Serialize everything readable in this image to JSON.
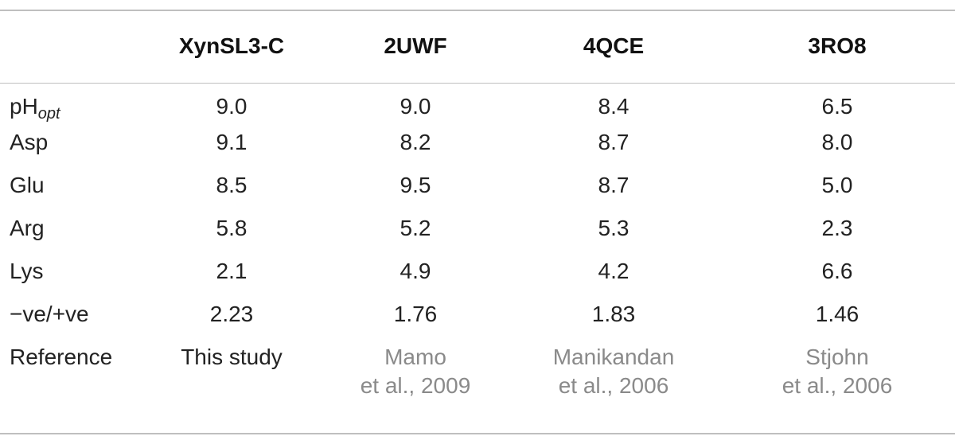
{
  "table": {
    "headers": [
      "",
      "XynSL3-C",
      "2UWF",
      "4QCE",
      "3RO8"
    ],
    "rows": [
      {
        "label_main": "pH",
        "label_sub": "opt",
        "values": [
          "9.0",
          "9.0",
          "8.4",
          "6.5"
        ]
      },
      {
        "label_main": "Asp",
        "label_sub": "",
        "values": [
          "9.1",
          "8.2",
          "8.7",
          "8.0"
        ]
      },
      {
        "label_main": "Glu",
        "label_sub": "",
        "values": [
          "8.5",
          "9.5",
          "8.7",
          "5.0"
        ]
      },
      {
        "label_main": "Arg",
        "label_sub": "",
        "values": [
          "5.8",
          "5.2",
          "5.3",
          "2.3"
        ]
      },
      {
        "label_main": "Lys",
        "label_sub": "",
        "values": [
          "2.1",
          "4.9",
          "4.2",
          "6.6"
        ]
      },
      {
        "label_main": "−ve/+ve",
        "label_sub": "",
        "values": [
          "2.23",
          "1.76",
          "1.83",
          "1.46"
        ]
      }
    ],
    "reference": {
      "label": "Reference",
      "values": [
        {
          "line1": "This study",
          "line2": ""
        },
        {
          "line1": "Mamo",
          "line2": "et al., 2009"
        },
        {
          "line1": "Manikandan",
          "line2": "et al., 2006"
        },
        {
          "line1": "Stjohn",
          "line2": "et al., 2006"
        }
      ]
    }
  },
  "colors": {
    "text": "#222222",
    "reference_link": "#8a8a8a",
    "rule": "#bfbfbf"
  }
}
